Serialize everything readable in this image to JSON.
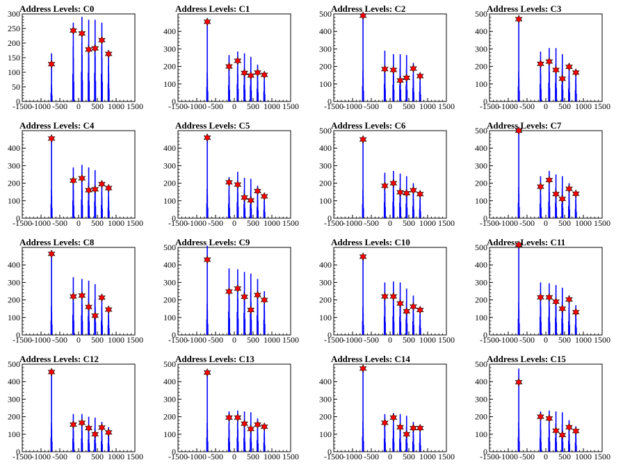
{
  "chart_data": [
    {
      "type": "bar",
      "title": "Address Levels: C0",
      "xlim": [
        -1500,
        1500
      ],
      "ylim": [
        0,
        300
      ],
      "yticks": [
        0,
        50,
        100,
        150,
        200,
        250,
        300
      ],
      "xticks": [
        -1500,
        -1000,
        -500,
        0,
        500,
        1000,
        1500
      ],
      "peaks": [
        {
          "x": -720,
          "top": 165,
          "star": 128
        },
        {
          "x": -140,
          "top": 270,
          "star": 243
        },
        {
          "x": 90,
          "top": 290,
          "star": 233
        },
        {
          "x": 270,
          "top": 280,
          "star": 178
        },
        {
          "x": 440,
          "top": 280,
          "star": 182
        },
        {
          "x": 620,
          "top": 270,
          "star": 210
        },
        {
          "x": 800,
          "top": 175,
          "star": 163
        }
      ]
    },
    {
      "type": "bar",
      "title": "Address Levels: C1",
      "xlim": [
        -1500,
        1500
      ],
      "ylim": [
        0,
        500
      ],
      "yticks": [
        0,
        100,
        200,
        300,
        400
      ],
      "xticks": [
        -1500,
        -1000,
        -500,
        0,
        500,
        1000,
        1500
      ],
      "peaks": [
        {
          "x": -720,
          "top": 470,
          "star": 455
        },
        {
          "x": -140,
          "top": 265,
          "star": 200
        },
        {
          "x": 90,
          "top": 285,
          "star": 232
        },
        {
          "x": 270,
          "top": 275,
          "star": 163
        },
        {
          "x": 440,
          "top": 255,
          "star": 148
        },
        {
          "x": 620,
          "top": 210,
          "star": 165
        },
        {
          "x": 800,
          "top": 165,
          "star": 152
        }
      ]
    },
    {
      "type": "bar",
      "title": "Address Levels: C2",
      "xlim": [
        -1500,
        1500
      ],
      "ylim": [
        0,
        500
      ],
      "yticks": [
        0,
        100,
        200,
        300,
        400,
        500
      ],
      "xticks": [
        -1500,
        -1000,
        -500,
        0,
        500,
        1000,
        1500
      ],
      "peaks": [
        {
          "x": -720,
          "top": 500,
          "star": 490
        },
        {
          "x": -140,
          "top": 290,
          "star": 185
        },
        {
          "x": 90,
          "top": 270,
          "star": 180
        },
        {
          "x": 270,
          "top": 270,
          "star": 120
        },
        {
          "x": 440,
          "top": 265,
          "star": 135
        },
        {
          "x": 620,
          "top": 220,
          "star": 188
        },
        {
          "x": 800,
          "top": 160,
          "star": 145
        }
      ]
    },
    {
      "type": "bar",
      "title": "Address Levels: C3",
      "xlim": [
        -1500,
        1500
      ],
      "ylim": [
        0,
        500
      ],
      "yticks": [
        0,
        100,
        200,
        300,
        400,
        500
      ],
      "xticks": [
        -1500,
        -1000,
        -500,
        0,
        500,
        1000,
        1500
      ],
      "peaks": [
        {
          "x": -720,
          "top": 490,
          "star": 470
        },
        {
          "x": -140,
          "top": 285,
          "star": 215
        },
        {
          "x": 90,
          "top": 305,
          "star": 228
        },
        {
          "x": 270,
          "top": 305,
          "star": 180
        },
        {
          "x": 440,
          "top": 270,
          "star": 130
        },
        {
          "x": 620,
          "top": 210,
          "star": 198
        },
        {
          "x": 800,
          "top": 180,
          "star": 165
        }
      ]
    },
    {
      "type": "bar",
      "title": "Address Levels: C4",
      "xlim": [
        -1500,
        1500
      ],
      "ylim": [
        0,
        500
      ],
      "yticks": [
        0,
        100,
        200,
        300,
        400
      ],
      "xticks": [
        -1500,
        -1000,
        -500,
        0,
        500,
        1000,
        1500
      ],
      "peaks": [
        {
          "x": -720,
          "top": 460,
          "star": 455
        },
        {
          "x": -140,
          "top": 290,
          "star": 215
        },
        {
          "x": 90,
          "top": 305,
          "star": 228
        },
        {
          "x": 270,
          "top": 290,
          "star": 160
        },
        {
          "x": 440,
          "top": 275,
          "star": 165
        },
        {
          "x": 620,
          "top": 215,
          "star": 195
        },
        {
          "x": 800,
          "top": 175,
          "star": 172
        }
      ]
    },
    {
      "type": "bar",
      "title": "Address Levels: C5",
      "xlim": [
        -1500,
        1500
      ],
      "ylim": [
        0,
        500
      ],
      "yticks": [
        0,
        100,
        200,
        300,
        400
      ],
      "xticks": [
        -1500,
        -1000,
        -500,
        0,
        500,
        1000,
        1500
      ],
      "peaks": [
        {
          "x": -720,
          "top": 480,
          "star": 460
        },
        {
          "x": -140,
          "top": 235,
          "star": 205
        },
        {
          "x": 90,
          "top": 265,
          "star": 192
        },
        {
          "x": 270,
          "top": 230,
          "star": 118
        },
        {
          "x": 440,
          "top": 225,
          "star": 102
        },
        {
          "x": 620,
          "top": 185,
          "star": 155
        },
        {
          "x": 800,
          "top": 140,
          "star": 125
        }
      ]
    },
    {
      "type": "bar",
      "title": "Address Levels: C6",
      "xlim": [
        -1500,
        1500
      ],
      "ylim": [
        0,
        500
      ],
      "yticks": [
        0,
        100,
        200,
        300,
        400,
        500
      ],
      "xticks": [
        -1500,
        -1000,
        -500,
        0,
        500,
        1000,
        1500
      ],
      "peaks": [
        {
          "x": -720,
          "top": 460,
          "star": 450
        },
        {
          "x": -140,
          "top": 260,
          "star": 185
        },
        {
          "x": 90,
          "top": 270,
          "star": 200
        },
        {
          "x": 270,
          "top": 255,
          "star": 148
        },
        {
          "x": 440,
          "top": 240,
          "star": 143
        },
        {
          "x": 620,
          "top": 200,
          "star": 160
        },
        {
          "x": 800,
          "top": 150,
          "star": 138
        }
      ]
    },
    {
      "type": "bar",
      "title": "Address Levels: C7",
      "xlim": [
        -1500,
        1500
      ],
      "ylim": [
        0,
        500
      ],
      "yticks": [
        0,
        100,
        200,
        300,
        400,
        500
      ],
      "xticks": [
        -1500,
        -1000,
        -500,
        0,
        500,
        1000,
        1500
      ],
      "peaks": [
        {
          "x": -720,
          "top": 510,
          "star": 500
        },
        {
          "x": -140,
          "top": 240,
          "star": 180
        },
        {
          "x": 90,
          "top": 270,
          "star": 218
        },
        {
          "x": 270,
          "top": 250,
          "star": 138
        },
        {
          "x": 440,
          "top": 240,
          "star": 110
        },
        {
          "x": 620,
          "top": 200,
          "star": 168
        },
        {
          "x": 800,
          "top": 150,
          "star": 140
        }
      ]
    },
    {
      "type": "bar",
      "title": "Address Levels: C8",
      "xlim": [
        -1500,
        1500
      ],
      "ylim": [
        0,
        500
      ],
      "yticks": [
        0,
        100,
        200,
        300,
        400
      ],
      "xticks": [
        -1500,
        -1000,
        -500,
        0,
        500,
        1000,
        1500
      ],
      "peaks": [
        {
          "x": -720,
          "top": 470,
          "star": 463
        },
        {
          "x": -140,
          "top": 330,
          "star": 220
        },
        {
          "x": 90,
          "top": 320,
          "star": 225
        },
        {
          "x": 270,
          "top": 310,
          "star": 160
        },
        {
          "x": 440,
          "top": 290,
          "star": 110
        },
        {
          "x": 620,
          "top": 230,
          "star": 213
        },
        {
          "x": 800,
          "top": 160,
          "star": 145
        }
      ]
    },
    {
      "type": "bar",
      "title": "Address Levels: C9",
      "xlim": [
        -1500,
        1500
      ],
      "ylim": [
        0,
        500
      ],
      "yticks": [
        0,
        100,
        200,
        300,
        400,
        500
      ],
      "xticks": [
        -1500,
        -1000,
        -500,
        0,
        500,
        1000,
        1500
      ],
      "peaks": [
        {
          "x": -720,
          "top": 510,
          "star": 430
        },
        {
          "x": -140,
          "top": 380,
          "star": 248
        },
        {
          "x": 90,
          "top": 375,
          "star": 265
        },
        {
          "x": 270,
          "top": 360,
          "star": 218
        },
        {
          "x": 440,
          "top": 350,
          "star": 143
        },
        {
          "x": 620,
          "top": 320,
          "star": 228
        },
        {
          "x": 800,
          "top": 250,
          "star": 200
        }
      ]
    },
    {
      "type": "bar",
      "title": "Address Levels: C10",
      "xlim": [
        -1500,
        1500
      ],
      "ylim": [
        0,
        500
      ],
      "yticks": [
        0,
        100,
        200,
        300,
        400
      ],
      "xticks": [
        -1500,
        -1000,
        -500,
        0,
        500,
        1000,
        1500
      ],
      "peaks": [
        {
          "x": -720,
          "top": 460,
          "star": 447
        },
        {
          "x": -140,
          "top": 300,
          "star": 220
        },
        {
          "x": 90,
          "top": 305,
          "star": 220
        },
        {
          "x": 270,
          "top": 300,
          "star": 180
        },
        {
          "x": 440,
          "top": 265,
          "star": 135
        },
        {
          "x": 620,
          "top": 225,
          "star": 162
        },
        {
          "x": 800,
          "top": 160,
          "star": 143
        }
      ]
    },
    {
      "type": "bar",
      "title": "Address Levels: C11",
      "xlim": [
        -1500,
        1500
      ],
      "ylim": [
        0,
        500
      ],
      "yticks": [
        0,
        100,
        200,
        300,
        400,
        500
      ],
      "xticks": [
        -1500,
        -1000,
        -500,
        0,
        500,
        1000,
        1500
      ],
      "peaks": [
        {
          "x": -720,
          "top": 530,
          "star": 515
        },
        {
          "x": -140,
          "top": 300,
          "star": 215
        },
        {
          "x": 90,
          "top": 295,
          "star": 215
        },
        {
          "x": 270,
          "top": 285,
          "star": 190
        },
        {
          "x": 440,
          "top": 270,
          "star": 150
        },
        {
          "x": 620,
          "top": 225,
          "star": 203
        },
        {
          "x": 800,
          "top": 170,
          "star": 130
        }
      ]
    },
    {
      "type": "bar",
      "title": "Address Levels: C12",
      "xlim": [
        -1500,
        1500
      ],
      "ylim": [
        0,
        500
      ],
      "yticks": [
        0,
        100,
        200,
        300,
        400,
        500
      ],
      "xticks": [
        -1500,
        -1000,
        -500,
        0,
        500,
        1000,
        1500
      ],
      "peaks": [
        {
          "x": -720,
          "top": 465,
          "star": 455
        },
        {
          "x": -140,
          "top": 215,
          "star": 155
        },
        {
          "x": 90,
          "top": 215,
          "star": 165
        },
        {
          "x": 270,
          "top": 200,
          "star": 135
        },
        {
          "x": 440,
          "top": 195,
          "star": 100
        },
        {
          "x": 620,
          "top": 170,
          "star": 138
        },
        {
          "x": 800,
          "top": 140,
          "star": 110
        }
      ]
    },
    {
      "type": "bar",
      "title": "Address Levels: C13",
      "xlim": [
        -1500,
        1500
      ],
      "ylim": [
        0,
        500
      ],
      "yticks": [
        0,
        100,
        200,
        300,
        400,
        500
      ],
      "xticks": [
        -1500,
        -1000,
        -500,
        0,
        500,
        1000,
        1500
      ],
      "peaks": [
        {
          "x": -720,
          "top": 470,
          "star": 452
        },
        {
          "x": -140,
          "top": 230,
          "star": 195
        },
        {
          "x": 90,
          "top": 235,
          "star": 195
        },
        {
          "x": 270,
          "top": 230,
          "star": 160
        },
        {
          "x": 440,
          "top": 225,
          "star": 130
        },
        {
          "x": 620,
          "top": 190,
          "star": 155
        },
        {
          "x": 800,
          "top": 150,
          "star": 143
        }
      ]
    },
    {
      "type": "bar",
      "title": "Address Levels: C14",
      "xlim": [
        -1500,
        1500
      ],
      "ylim": [
        0,
        500
      ],
      "yticks": [
        0,
        100,
        200,
        300,
        400
      ],
      "xticks": [
        -1500,
        -1000,
        -500,
        0,
        500,
        1000,
        1500
      ],
      "peaks": [
        {
          "x": -720,
          "top": 490,
          "star": 475
        },
        {
          "x": -140,
          "top": 215,
          "star": 165
        },
        {
          "x": 90,
          "top": 220,
          "star": 195
        },
        {
          "x": 270,
          "top": 215,
          "star": 140
        },
        {
          "x": 440,
          "top": 205,
          "star": 100
        },
        {
          "x": 620,
          "top": 170,
          "star": 135
        },
        {
          "x": 800,
          "top": 150,
          "star": 135
        }
      ]
    },
    {
      "type": "bar",
      "title": "Address Levels: C15",
      "xlim": [
        -1500,
        1500
      ],
      "ylim": [
        0,
        500
      ],
      "yticks": [
        0,
        100,
        200,
        300,
        400,
        500
      ],
      "xticks": [
        -1500,
        -1000,
        -500,
        0,
        500,
        1000,
        1500
      ],
      "peaks": [
        {
          "x": -720,
          "top": 475,
          "star": 397
        },
        {
          "x": -140,
          "top": 230,
          "star": 200
        },
        {
          "x": 90,
          "top": 235,
          "star": 190
        },
        {
          "x": 270,
          "top": 230,
          "star": 120
        },
        {
          "x": 440,
          "top": 225,
          "star": 95
        },
        {
          "x": 620,
          "top": 180,
          "star": 140
        },
        {
          "x": 800,
          "top": 145,
          "star": 118
        }
      ]
    }
  ],
  "style": {
    "bar_color": "#0000ff",
    "star_color": "#ff0000",
    "axis_color": "#000000"
  }
}
